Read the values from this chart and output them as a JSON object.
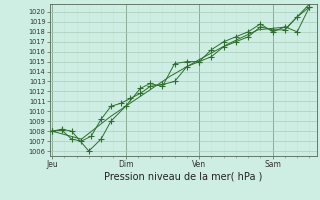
{
  "xlabel": "Pression niveau de la mer( hPa )",
  "bg_color": "#ceeee4",
  "grid_major_color": "#aaccbb",
  "grid_minor_color": "#c4e4d8",
  "line_color": "#2d6e2d",
  "ylim_min": 1005.5,
  "ylim_max": 1020.8,
  "yticks": [
    1006,
    1007,
    1008,
    1009,
    1010,
    1011,
    1012,
    1013,
    1014,
    1015,
    1016,
    1017,
    1018,
    1019,
    1020
  ],
  "xtick_labels": [
    "Jeu",
    "Dim",
    "Ven",
    "Sam"
  ],
  "xtick_positions": [
    0.0,
    3.0,
    6.0,
    9.0
  ],
  "xlim_min": -0.1,
  "xlim_max": 10.8,
  "vline_positions": [
    0.0,
    3.0,
    6.0,
    9.0
  ],
  "line1_x": [
    0.0,
    0.4,
    0.8,
    1.2,
    1.6,
    2.0,
    2.4,
    2.8,
    3.2,
    3.6,
    4.0,
    4.5,
    5.0,
    5.5,
    6.0,
    6.5,
    7.0,
    7.5,
    8.0,
    8.5,
    9.0,
    9.5,
    10.0,
    10.5
  ],
  "line1_y": [
    1008.0,
    1008.1,
    1007.2,
    1007.0,
    1007.5,
    1009.2,
    1010.5,
    1010.8,
    1011.3,
    1011.8,
    1012.5,
    1012.7,
    1013.0,
    1014.5,
    1015.0,
    1015.5,
    1016.5,
    1017.0,
    1017.5,
    1018.5,
    1018.2,
    1018.2,
    1019.5,
    1020.5
  ],
  "line2_x": [
    0.0,
    0.4,
    0.8,
    1.5,
    2.0,
    2.4,
    3.0,
    3.6,
    4.0,
    4.5,
    5.0,
    5.5,
    6.0,
    6.5,
    7.0,
    7.5,
    8.0,
    8.5,
    9.0,
    9.5,
    10.0,
    10.5
  ],
  "line2_y": [
    1008.0,
    1008.2,
    1008.0,
    1006.0,
    1007.2,
    1009.0,
    1010.5,
    1012.3,
    1012.8,
    1012.5,
    1014.8,
    1015.0,
    1015.0,
    1016.2,
    1017.0,
    1017.5,
    1018.0,
    1018.8,
    1018.0,
    1018.5,
    1018.0,
    1020.5
  ],
  "line3_x": [
    0.0,
    1.2,
    2.4,
    3.6,
    4.8,
    6.0,
    7.2,
    8.4,
    9.6,
    10.5
  ],
  "line3_y": [
    1008.0,
    1007.2,
    1009.5,
    1011.5,
    1013.5,
    1015.2,
    1016.8,
    1018.2,
    1018.5,
    1020.8
  ]
}
